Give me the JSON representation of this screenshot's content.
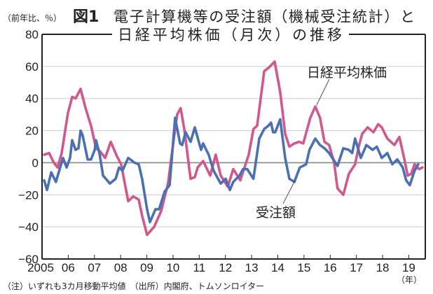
{
  "chart_data": {
    "type": "line",
    "title_line1": "電子計算機等の受注額（機械受注統計）と",
    "title_line2": "日経平均株価（月次）の推移",
    "figure_label": "図1",
    "ylabel": "（前年比、％）",
    "xlabel": "（年）",
    "ylim": [
      -60,
      80
    ],
    "xlim": [
      2005,
      2019.63
    ],
    "yticks": [
      "80",
      "60",
      "40",
      "20",
      "0",
      "−20",
      "−40",
      "−60"
    ],
    "ytick_values": [
      80,
      60,
      40,
      20,
      0,
      -20,
      -40,
      -60
    ],
    "xticks": [
      "2005",
      "06",
      "07",
      "08",
      "09",
      "10",
      "11",
      "12",
      "13",
      "14",
      "15",
      "16",
      "17",
      "18",
      "19"
    ],
    "grid": true,
    "note": "（注）いずれも3カ月移動平均値　（出所）内閣府、トムソンロイター",
    "colors": {
      "nikkei": "#d2588b",
      "orders": "#4a70b3"
    },
    "series": [
      {
        "name": "日経平均株価",
        "key": "nikkei",
        "x": [
          2005.08,
          2005.27,
          2005.45,
          2005.59,
          2005.75,
          2005.99,
          2006.15,
          2006.28,
          2006.47,
          2006.66,
          2006.87,
          2007.06,
          2007.22,
          2007.41,
          2007.62,
          2007.86,
          2008.02,
          2008.29,
          2008.48,
          2008.69,
          2008.82,
          2009.01,
          2009.28,
          2009.55,
          2009.81,
          2010.03,
          2010.16,
          2010.29,
          2010.43,
          2010.67,
          2010.83,
          2010.94,
          2011.15,
          2011.42,
          2011.63,
          2011.82,
          2012.09,
          2012.3,
          2012.57,
          2012.89,
          2013.07,
          2013.21,
          2013.48,
          2013.64,
          2013.88,
          2014.09,
          2014.28,
          2014.44,
          2014.63,
          2014.81,
          2014.97,
          2015.24,
          2015.43,
          2015.61,
          2015.78,
          2015.96,
          2016.15,
          2016.28,
          2016.5,
          2016.71,
          2016.95,
          2017.09,
          2017.22,
          2017.43,
          2017.65,
          2017.83,
          2017.97,
          2018.18,
          2018.45,
          2018.64,
          2018.82,
          2018.96,
          2019.09,
          2019.22,
          2019.39,
          2019.52
        ],
        "values": [
          5,
          6,
          0,
          -3,
          6,
          31,
          41,
          40,
          46,
          34,
          23,
          9,
          7,
          3,
          13,
          4,
          -1,
          -24,
          -21,
          -23,
          -33,
          -45,
          -40,
          -30,
          -13,
          15,
          30,
          34,
          21,
          -10,
          -9,
          -3,
          1,
          -8,
          5,
          -8,
          -15,
          -4,
          -11,
          5,
          21,
          23,
          57,
          59,
          63,
          44,
          18,
          10,
          12,
          13,
          12,
          28,
          35,
          28,
          13,
          11,
          0,
          -16,
          -20,
          -7,
          -1,
          10,
          18,
          22,
          19,
          24,
          22,
          15,
          11,
          16,
          3,
          -8,
          -7,
          -1,
          -4,
          -3
        ]
      },
      {
        "name": "受注額",
        "key": "orders",
        "x": [
          2005.08,
          2005.19,
          2005.35,
          2005.53,
          2005.8,
          2005.94,
          2006.07,
          2006.15,
          2006.28,
          2006.39,
          2006.47,
          2006.55,
          2006.74,
          2006.87,
          2007.01,
          2007.06,
          2007.19,
          2007.33,
          2007.59,
          2007.81,
          2007.94,
          2008.07,
          2008.29,
          2008.53,
          2008.69,
          2008.82,
          2009.01,
          2009.12,
          2009.33,
          2009.47,
          2009.68,
          2009.87,
          2010.08,
          2010.27,
          2010.35,
          2010.48,
          2010.67,
          2010.83,
          2011.07,
          2011.15,
          2011.36,
          2011.55,
          2011.82,
          2012.01,
          2012.17,
          2012.3,
          2012.54,
          2012.67,
          2012.83,
          2013.07,
          2013.29,
          2013.48,
          2013.64,
          2013.74,
          2013.82,
          2013.9,
          2014.09,
          2014.28,
          2014.44,
          2014.63,
          2014.84,
          2015.08,
          2015.21,
          2015.43,
          2015.61,
          2015.78,
          2015.96,
          2016.28,
          2016.5,
          2016.71,
          2016.84,
          2016.95,
          2017.17,
          2017.38,
          2017.62,
          2017.78,
          2017.97,
          2018.18,
          2018.37,
          2018.56,
          2018.77,
          2018.9,
          2019.04,
          2019.22,
          2019.36
        ],
        "values": [
          -11,
          -17,
          -6,
          -12,
          3,
          -3,
          3,
          14,
          8,
          9,
          20,
          17,
          2,
          2,
          8,
          14,
          6,
          -8,
          -13,
          -10,
          -3,
          -5,
          3,
          0,
          -1,
          -10,
          -29,
          -37,
          -29,
          -29,
          -18,
          -14,
          28,
          12,
          11,
          19,
          13,
          22,
          8,
          12,
          5,
          -5,
          -13,
          -10,
          -17,
          -12,
          -8,
          -4,
          -4,
          -10,
          15,
          21,
          23,
          25,
          19,
          19,
          27,
          3,
          -10,
          -12,
          -3,
          -1,
          8,
          15,
          11,
          9,
          6,
          -2,
          9,
          8,
          6,
          15,
          3,
          11,
          8,
          10,
          3,
          6,
          -1,
          2,
          -3,
          -11,
          -14,
          -5,
          -1
        ]
      }
    ]
  }
}
